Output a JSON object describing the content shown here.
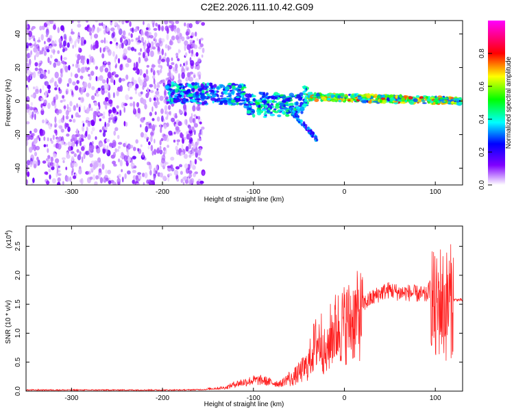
{
  "title": "C2E2.2026.111.10.42.G09",
  "chart_data": [
    {
      "type": "heatmap",
      "xlabel": "Height of straight line (km)",
      "ylabel": "Frequency (Hz)",
      "xlim": [
        -350,
        130
      ],
      "ylim": [
        -50,
        48
      ],
      "x_ticks": [
        -300,
        -200,
        -100,
        0,
        100
      ],
      "y_ticks": [
        -40,
        -20,
        0,
        20,
        40
      ],
      "colorbar": {
        "label": "Normalized spectral amplitude",
        "range": [
          0,
          1
        ],
        "ticks": [
          "0.0",
          "0.2",
          "0.4",
          "0.6",
          "0.8"
        ],
        "colors": [
          "#ffffff",
          "#8000ff",
          "#0000ff",
          "#00ffff",
          "#00ff00",
          "#ffff00",
          "#ff0000",
          "#ff00ff"
        ]
      },
      "regions": [
        {
          "name": "noise",
          "x": [
            -350,
            -155
          ],
          "y": [
            -50,
            48
          ],
          "amplitude": 0.1
        },
        {
          "name": "signal",
          "x": [
            -195,
            130
          ],
          "freq_hz": [
            5,
            0
          ],
          "amplitude": 0.5
        },
        {
          "name": "branch",
          "x": [
            -60,
            -30
          ],
          "freq_hz": [
            -5,
            -23
          ],
          "amplitude": 0.35
        }
      ]
    },
    {
      "type": "line",
      "xlabel": "Height of straight line (km)",
      "ylabel": "SNR (10 * v/v)",
      "y_multiplier": "(x10",
      "y_multiplier_exp": "4",
      "xlim": [
        -350,
        130
      ],
      "ylim": [
        0,
        2.85
      ],
      "x_ticks": [
        -300,
        -200,
        -100,
        0,
        100
      ],
      "y_ticks": [
        "0.0",
        "0.5",
        "1.0",
        "1.5",
        "2.0",
        "2.5"
      ],
      "series": [
        {
          "color": "#ff2020",
          "x": [
            -350,
            -300,
            -250,
            -200,
            -180,
            -150,
            -130,
            -120,
            -100,
            -90,
            -80,
            -70,
            -60,
            -50,
            -40,
            -35,
            -30,
            -25,
            -20,
            -15,
            -10,
            0,
            10,
            20,
            30,
            40,
            50,
            60,
            70,
            80,
            90,
            95,
            100,
            105,
            110,
            115,
            120,
            130
          ],
          "y": [
            0.02,
            0.02,
            0.02,
            0.02,
            0.02,
            0.03,
            0.05,
            0.1,
            0.15,
            0.15,
            0.12,
            0.1,
            0.2,
            0.35,
            0.5,
            0.8,
            0.95,
            1.0,
            0.6,
            1.1,
            1.2,
            1.3,
            1.4,
            1.5,
            1.6,
            1.7,
            1.75,
            1.7,
            1.7,
            1.68,
            1.65,
            1.8,
            1.3,
            1.6,
            1.45,
            1.55,
            1.58,
            1.57
          ]
        }
      ]
    }
  ]
}
